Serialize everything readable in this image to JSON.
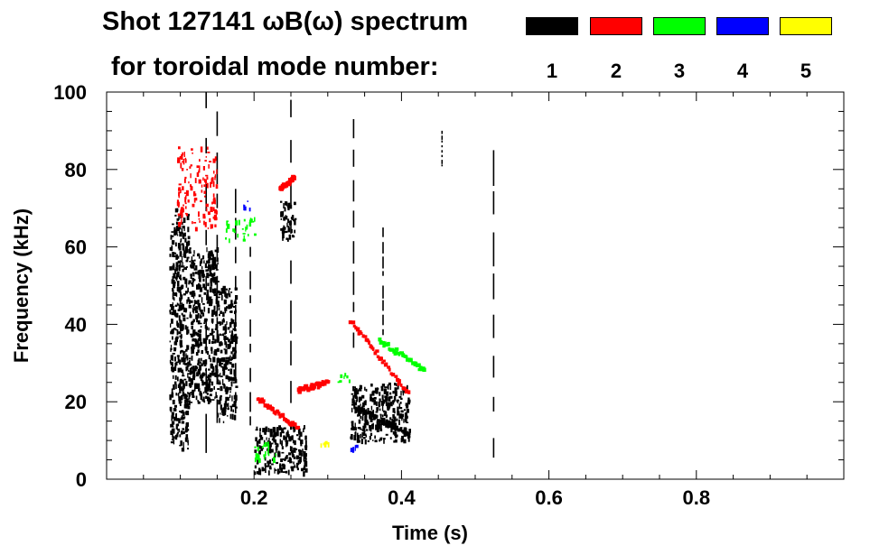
{
  "legend": {
    "title_line1": "Shot 127141 ωB(ω) spectrum",
    "title_line2": "for toroidal mode number:",
    "modes": [
      {
        "label": "1",
        "color": "#000000"
      },
      {
        "label": "2",
        "color": "#ff0000"
      },
      {
        "label": "3",
        "color": "#00ff00"
      },
      {
        "label": "4",
        "color": "#0000ff"
      },
      {
        "label": "5",
        "color": "#ffff00"
      }
    ]
  },
  "chart_data": {
    "type": "heatmap",
    "title": "Shot 127141 ωB(ω) spectrum",
    "xlabel": "Time (s)",
    "ylabel": "Frequency (kHz)",
    "xlim": [
      0.0,
      1.0
    ],
    "ylim": [
      0,
      100
    ],
    "x_ticks": [
      {
        "value": 0.2,
        "label": "0.2"
      },
      {
        "value": 0.4,
        "label": "0.4"
      },
      {
        "value": 0.6,
        "label": "0.6"
      },
      {
        "value": 0.8,
        "label": "0.8"
      }
    ],
    "y_ticks": [
      {
        "value": 0,
        "label": "0"
      },
      {
        "value": 20,
        "label": "20"
      },
      {
        "value": 40,
        "label": "40"
      },
      {
        "value": 60,
        "label": "60"
      },
      {
        "value": 80,
        "label": "80"
      },
      {
        "value": 100,
        "label": "100"
      }
    ],
    "grid": false,
    "modes": [
      {
        "mode": 1,
        "color": "#000000",
        "regions": [
          {
            "t": [
              0.085,
              0.11
            ],
            "f": [
              8,
              70
            ]
          },
          {
            "t": [
              0.11,
              0.15
            ],
            "f": [
              20,
              60
            ]
          },
          {
            "t": [
              0.15,
              0.175
            ],
            "f": [
              15,
              50
            ]
          },
          {
            "t": [
              0.2,
              0.27
            ],
            "f": [
              2,
              14
            ]
          },
          {
            "t": [
              0.235,
              0.255
            ],
            "f": [
              62,
              72
            ]
          },
          {
            "t": [
              0.33,
              0.41
            ],
            "f": [
              10,
              25
            ]
          }
        ],
        "tracks": [
          {
            "t": [
              0.34,
              0.41
            ],
            "f": [
              18,
              12
            ]
          }
        ],
        "vertical_streaks": [
          {
            "t": 0.135,
            "f": [
              5,
              100
            ]
          },
          {
            "t": 0.15,
            "f": [
              10,
              95
            ]
          },
          {
            "t": 0.175,
            "f": [
              15,
              75
            ]
          },
          {
            "t": 0.195,
            "f": [
              10,
              60
            ]
          },
          {
            "t": 0.25,
            "f": [
              15,
              98
            ]
          },
          {
            "t": 0.335,
            "f": [
              30,
              93
            ]
          },
          {
            "t": 0.375,
            "f": [
              35,
              65
            ]
          },
          {
            "t": 0.455,
            "f": [
              80,
              90
            ]
          },
          {
            "t": 0.525,
            "f": [
              0,
              85
            ]
          }
        ]
      },
      {
        "mode": 2,
        "color": "#ff0000",
        "regions": [
          {
            "t": [
              0.095,
              0.15
            ],
            "f": [
              65,
              86
            ]
          }
        ],
        "tracks": [
          {
            "t": [
              0.205,
              0.26
            ],
            "f": [
              21,
              13
            ]
          },
          {
            "t": [
              0.26,
              0.3
            ],
            "f": [
              23,
              25
            ]
          },
          {
            "t": [
              0.33,
              0.41
            ],
            "f": [
              41,
              22
            ]
          },
          {
            "t": [
              0.235,
              0.255
            ],
            "f": [
              75,
              78
            ]
          }
        ]
      },
      {
        "mode": 3,
        "color": "#00ff00",
        "regions": [
          {
            "t": [
              0.16,
              0.2
            ],
            "f": [
              62,
              68
            ]
          },
          {
            "t": [
              0.2,
              0.24
            ],
            "f": [
              5,
              10
            ]
          },
          {
            "t": [
              0.31,
              0.33
            ],
            "f": [
              25,
              28
            ]
          }
        ],
        "tracks": [
          {
            "t": [
              0.37,
              0.43
            ],
            "f": [
              36,
              28
            ]
          }
        ]
      },
      {
        "mode": 4,
        "color": "#0000ff",
        "regions": [
          {
            "t": [
              0.185,
              0.195
            ],
            "f": [
              70,
              72
            ]
          },
          {
            "t": [
              0.33,
              0.34
            ],
            "f": [
              8,
              9
            ]
          }
        ],
        "tracks": []
      },
      {
        "mode": 5,
        "color": "#ffff00",
        "regions": [
          {
            "t": [
              0.29,
              0.3
            ],
            "f": [
              9,
              10
            ]
          }
        ],
        "tracks": []
      }
    ]
  }
}
